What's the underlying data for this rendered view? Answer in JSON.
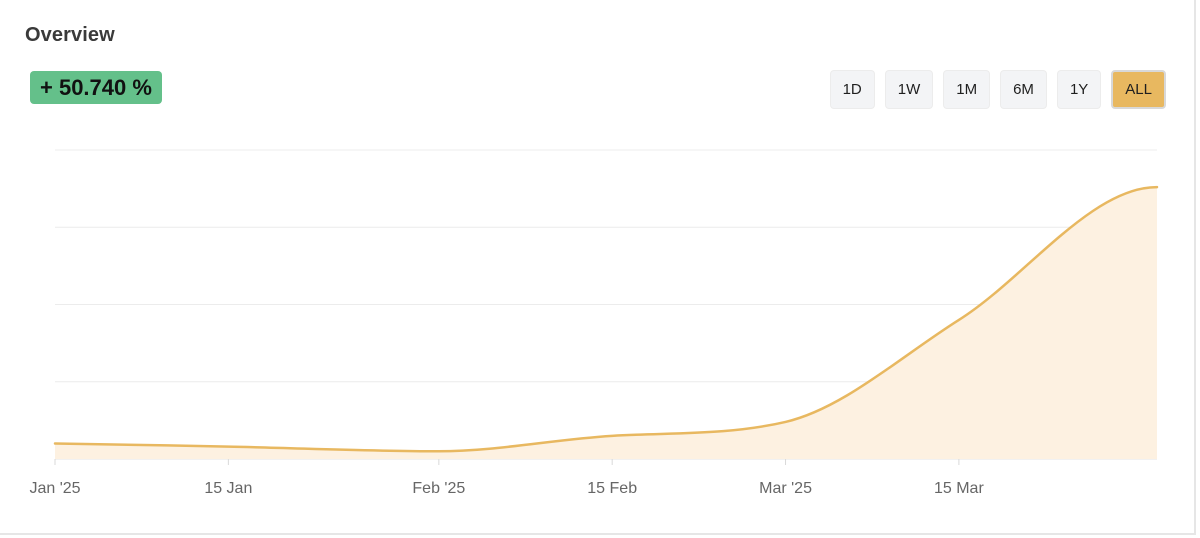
{
  "header": {
    "title": "Overview",
    "change_badge": "+ 50.740 %"
  },
  "range_buttons": [
    {
      "label": "1D",
      "active": false
    },
    {
      "label": "1W",
      "active": false
    },
    {
      "label": "1M",
      "active": false
    },
    {
      "label": "6M",
      "active": false
    },
    {
      "label": "1Y",
      "active": false
    },
    {
      "label": "ALL",
      "active": true
    }
  ],
  "colors": {
    "line": "#e8b860",
    "area": "#fdf1e1",
    "badge": "#64c08a",
    "grid": "#ececec"
  },
  "chart_data": {
    "type": "area",
    "title": "",
    "xlabel": "",
    "ylabel": "",
    "x_ticks": [
      "Jan '25",
      "15 Jan",
      "Feb '25",
      "15 Feb",
      "Mar '25",
      "15 Mar"
    ],
    "x_tick_dates": [
      "2025-01-01",
      "2025-01-15",
      "2025-02-01",
      "2025-02-15",
      "2025-03-01",
      "2025-03-15"
    ],
    "xlim": [
      "2025-01-01",
      "2025-03-31"
    ],
    "ylim": [
      0,
      100
    ],
    "grid": true,
    "y_axis_labels_shown": false,
    "series": [
      {
        "x": [
          "2025-01-01",
          "2025-01-15",
          "2025-02-01",
          "2025-02-15",
          "2025-03-01",
          "2025-03-15",
          "2025-03-31"
        ],
        "y": [
          5,
          4,
          2.5,
          7.5,
          12,
          45,
          88
        ]
      }
    ]
  }
}
